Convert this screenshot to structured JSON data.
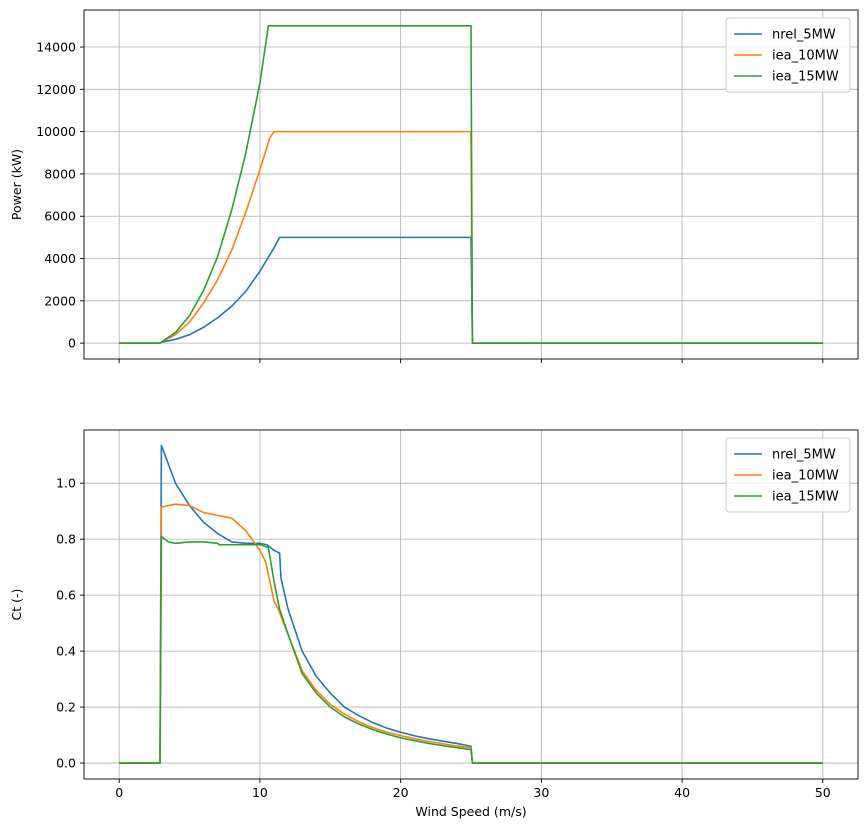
{
  "chart_data": [
    {
      "type": "line",
      "title": "",
      "xlabel": "",
      "ylabel": "Power (kW)",
      "xlim": [
        -2.5,
        52.5
      ],
      "ylim": [
        -750,
        15750
      ],
      "grid": true,
      "legend": "top-right",
      "xticks": [
        0,
        10,
        20,
        30,
        40,
        50
      ],
      "yticks": [
        0,
        2000,
        4000,
        6000,
        8000,
        10000,
        12000,
        14000
      ],
      "yticklabels": [
        "0",
        "2000",
        "4000",
        "6000",
        "8000",
        "10000",
        "12000",
        "14000"
      ],
      "series": [
        {
          "name": "nrel_5MW",
          "color": "#1f77b4",
          "x": [
            0,
            2.9,
            3,
            4,
            5,
            6,
            7,
            8,
            9,
            10,
            11,
            11.4,
            12,
            15,
            20,
            24.9,
            25,
            25.1,
            30,
            40,
            50
          ],
          "y": [
            0,
            0,
            40,
            180,
            400,
            750,
            1200,
            1750,
            2450,
            3400,
            4500,
            5000,
            5000,
            5000,
            5000,
            5000,
            5000,
            0,
            0,
            0,
            0
          ]
        },
        {
          "name": "iea_10MW",
          "color": "#ff7f0e",
          "x": [
            0,
            2.9,
            3,
            4,
            5,
            6,
            7,
            8,
            9,
            10,
            10.7,
            11,
            12,
            15,
            20,
            24.9,
            25,
            25.1,
            30,
            40,
            50
          ],
          "y": [
            0,
            0,
            50,
            400,
            1000,
            1900,
            3000,
            4400,
            6200,
            8200,
            9700,
            10000,
            10000,
            10000,
            10000,
            10000,
            10000,
            0,
            0,
            0,
            0
          ]
        },
        {
          "name": "iea_15MW",
          "color": "#2ca02c",
          "x": [
            0,
            2.9,
            3,
            4,
            5,
            6,
            7,
            8,
            9,
            10,
            10.6,
            11,
            12,
            15,
            20,
            24.9,
            25,
            25.1,
            30,
            40,
            50
          ],
          "y": [
            0,
            0,
            50,
            500,
            1300,
            2500,
            4100,
            6300,
            9000,
            12300,
            15000,
            15000,
            15000,
            15000,
            15000,
            15000,
            15000,
            0,
            0,
            0,
            0
          ]
        }
      ]
    },
    {
      "type": "line",
      "title": "",
      "xlabel": "Wind Speed (m/s)",
      "ylabel": "Ct (-)",
      "xlim": [
        -2.5,
        52.5
      ],
      "ylim": [
        -0.057,
        1.19
      ],
      "grid": true,
      "legend": "top-right",
      "xticks": [
        0,
        10,
        20,
        30,
        40,
        50
      ],
      "yticks": [
        0.0,
        0.2,
        0.4,
        0.6,
        0.8,
        1.0
      ],
      "xticklabels": [
        "0",
        "10",
        "20",
        "30",
        "40",
        "50"
      ],
      "yticklabels": [
        "0.0",
        "0.2",
        "0.4",
        "0.6",
        "0.8",
        "1.0"
      ],
      "series": [
        {
          "name": "nrel_5MW",
          "color": "#1f77b4",
          "x": [
            0,
            2.9,
            3,
            4,
            5,
            6,
            7,
            8,
            9,
            10,
            10.5,
            11,
            11.4,
            11.5,
            12,
            13,
            14,
            15,
            16,
            17,
            18,
            19,
            20,
            21,
            22,
            23,
            24,
            25,
            25.1,
            30,
            40,
            50
          ],
          "y": [
            0,
            0,
            1.135,
            1.0,
            0.92,
            0.86,
            0.82,
            0.79,
            0.785,
            0.785,
            0.78,
            0.76,
            0.75,
            0.66,
            0.55,
            0.4,
            0.31,
            0.25,
            0.2,
            0.17,
            0.145,
            0.125,
            0.11,
            0.097,
            0.087,
            0.078,
            0.07,
            0.06,
            0,
            0,
            0,
            0
          ]
        },
        {
          "name": "iea_10MW",
          "color": "#ff7f0e",
          "x": [
            0,
            2.9,
            3,
            4,
            5,
            6,
            7,
            8,
            9,
            10,
            10.4,
            11,
            11.3,
            12,
            13,
            14,
            15,
            16,
            17,
            18,
            19,
            20,
            21,
            22,
            23,
            24,
            25,
            25.1,
            30,
            40,
            50
          ],
          "y": [
            0,
            0,
            0.915,
            0.925,
            0.92,
            0.895,
            0.885,
            0.875,
            0.83,
            0.76,
            0.72,
            0.58,
            0.55,
            0.46,
            0.33,
            0.26,
            0.21,
            0.175,
            0.148,
            0.127,
            0.111,
            0.098,
            0.087,
            0.077,
            0.069,
            0.061,
            0.055,
            0,
            0,
            0,
            0
          ]
        },
        {
          "name": "iea_15MW",
          "color": "#2ca02c",
          "x": [
            0,
            2.9,
            3,
            3.5,
            4,
            5,
            6,
            7,
            7.1,
            8,
            9,
            10,
            10.6,
            11,
            11.4,
            12,
            13,
            14,
            15,
            16,
            17,
            18,
            19,
            20,
            21,
            22,
            23,
            24,
            25,
            25.1,
            30,
            40,
            50
          ],
          "y": [
            0,
            0,
            0.81,
            0.79,
            0.785,
            0.79,
            0.79,
            0.785,
            0.78,
            0.78,
            0.78,
            0.78,
            0.77,
            0.65,
            0.55,
            0.46,
            0.32,
            0.25,
            0.2,
            0.165,
            0.14,
            0.12,
            0.104,
            0.09,
            0.08,
            0.07,
            0.062,
            0.055,
            0.048,
            0,
            0,
            0,
            0
          ]
        }
      ]
    }
  ]
}
